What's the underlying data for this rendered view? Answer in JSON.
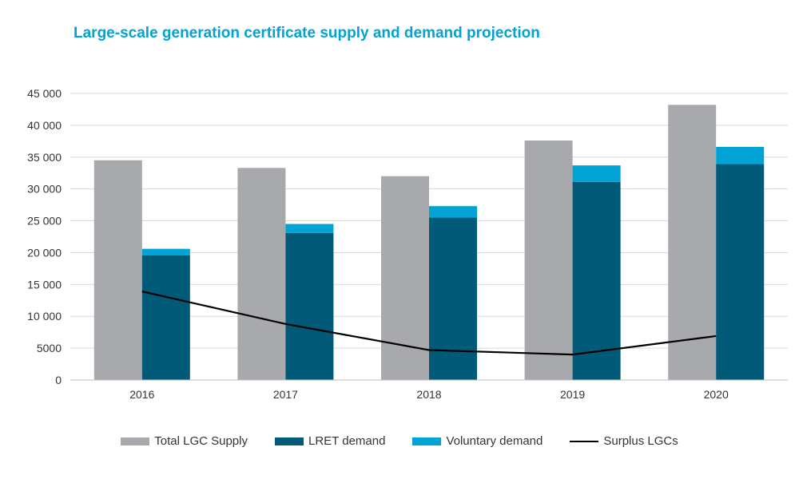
{
  "chart_data": {
    "type": "bar",
    "title": "Large-scale generation certificate supply and demand projection",
    "categories": [
      "2016",
      "2017",
      "2018",
      "2019",
      "2020"
    ],
    "ylim": [
      0,
      45000
    ],
    "yticks": [
      0,
      5000,
      10000,
      15000,
      20000,
      25000,
      30000,
      35000,
      40000,
      45000
    ],
    "ytick_labels": [
      "0",
      "5000",
      "10 000",
      "15 000",
      "20 000",
      "25 000",
      "30 000",
      "35 000",
      "40 000",
      "45 000"
    ],
    "grid": true,
    "legend_position": "bottom",
    "series": [
      {
        "name": "Total LGC Supply",
        "kind": "bar",
        "color": "#a7a9ac",
        "values": [
          34500,
          33300,
          32000,
          37600,
          43200
        ]
      },
      {
        "name": "LRET demand",
        "kind": "stacked-bar",
        "color": "#005a78",
        "values": [
          19600,
          23100,
          25500,
          31100,
          33900
        ]
      },
      {
        "name": "Voluntary demand",
        "kind": "stacked-bar",
        "color": "#00a3d3",
        "values": [
          1000,
          1400,
          1800,
          2600,
          2700
        ]
      },
      {
        "name": "Surplus LGCs",
        "kind": "line",
        "color": "#000000",
        "values": [
          13900,
          8800,
          4700,
          4000,
          6900
        ]
      }
    ]
  }
}
